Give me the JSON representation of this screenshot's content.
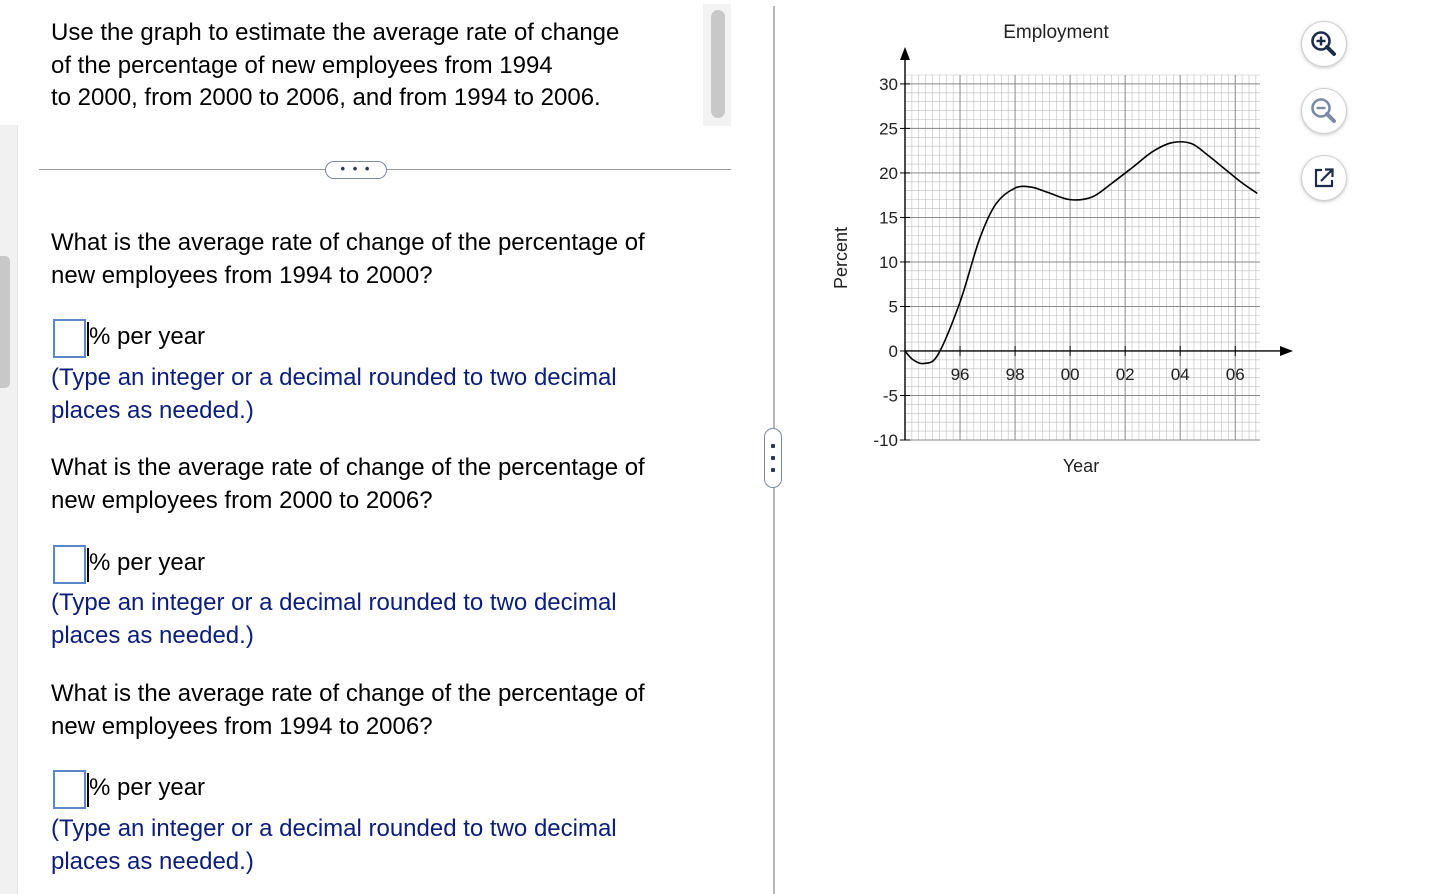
{
  "intro": {
    "line1": "Use the graph to estimate the average rate of change",
    "line2": "of the percentage of new employees from 1994",
    "line3": "to 2000, from 2000 to 2006, and from 1994 to 2006."
  },
  "expand_label": "• • •",
  "questions": [
    {
      "line1": "What is the average rate of change of the percentage of",
      "line2": "new employees from 1994 to 2000?",
      "value": "",
      "unit": "% per year",
      "hint1": "(Type an integer or a decimal rounded to two decimal",
      "hint2": "places as needed.)"
    },
    {
      "line1": "What is the average rate of change of the percentage of",
      "line2": "new employees from 2000 to 2006?",
      "value": "",
      "unit": "% per year",
      "hint1": "(Type an integer or a decimal rounded to two decimal",
      "hint2": "places as needed.)"
    },
    {
      "line1": "What is the average rate of change of the percentage of",
      "line2": "new employees from 1994 to 2006?",
      "value": "",
      "unit": "% per year",
      "hint1": "(Type an integer or a decimal rounded to two decimal",
      "hint2": "places as needed.)"
    }
  ],
  "tools": {
    "zoom_in": "zoom-in-icon",
    "zoom_out": "zoom-out-icon",
    "popout": "popout-icon"
  },
  "chart_data": {
    "type": "line",
    "title": "Employment",
    "xlabel": "Year",
    "ylabel": "Percent",
    "x_ticks": [
      1996,
      1998,
      2000,
      2002,
      2004,
      2006
    ],
    "x_tick_labels": [
      "96",
      "98",
      "00",
      "02",
      "04",
      "06"
    ],
    "y_ticks": [
      -10,
      -5,
      0,
      5,
      10,
      15,
      20,
      25,
      30
    ],
    "y_tick_labels": [
      "-10",
      "-5",
      "0",
      "5",
      "10",
      "15",
      "20",
      "25",
      "30"
    ],
    "xlim": [
      1994,
      2006.9
    ],
    "ylim": [
      -10,
      31
    ],
    "grid": true,
    "series": [
      {
        "x": [
          1994,
          1994.3,
          1994.7,
          1995.2,
          1996,
          1996.7,
          1997.3,
          1998,
          1998.6,
          1999.2,
          2000,
          2000.8,
          2001.5,
          2002.3,
          2003,
          2003.7,
          2004.4,
          2005,
          2005.6,
          2006.2,
          2006.8
        ],
        "y": [
          0,
          -1.0,
          -1.4,
          -0.4,
          5.5,
          12.5,
          16.5,
          18.3,
          18.4,
          17.8,
          17.0,
          17.3,
          18.8,
          20.7,
          22.4,
          23.4,
          23.3,
          22.0,
          20.5,
          19.0,
          17.7
        ]
      }
    ]
  }
}
